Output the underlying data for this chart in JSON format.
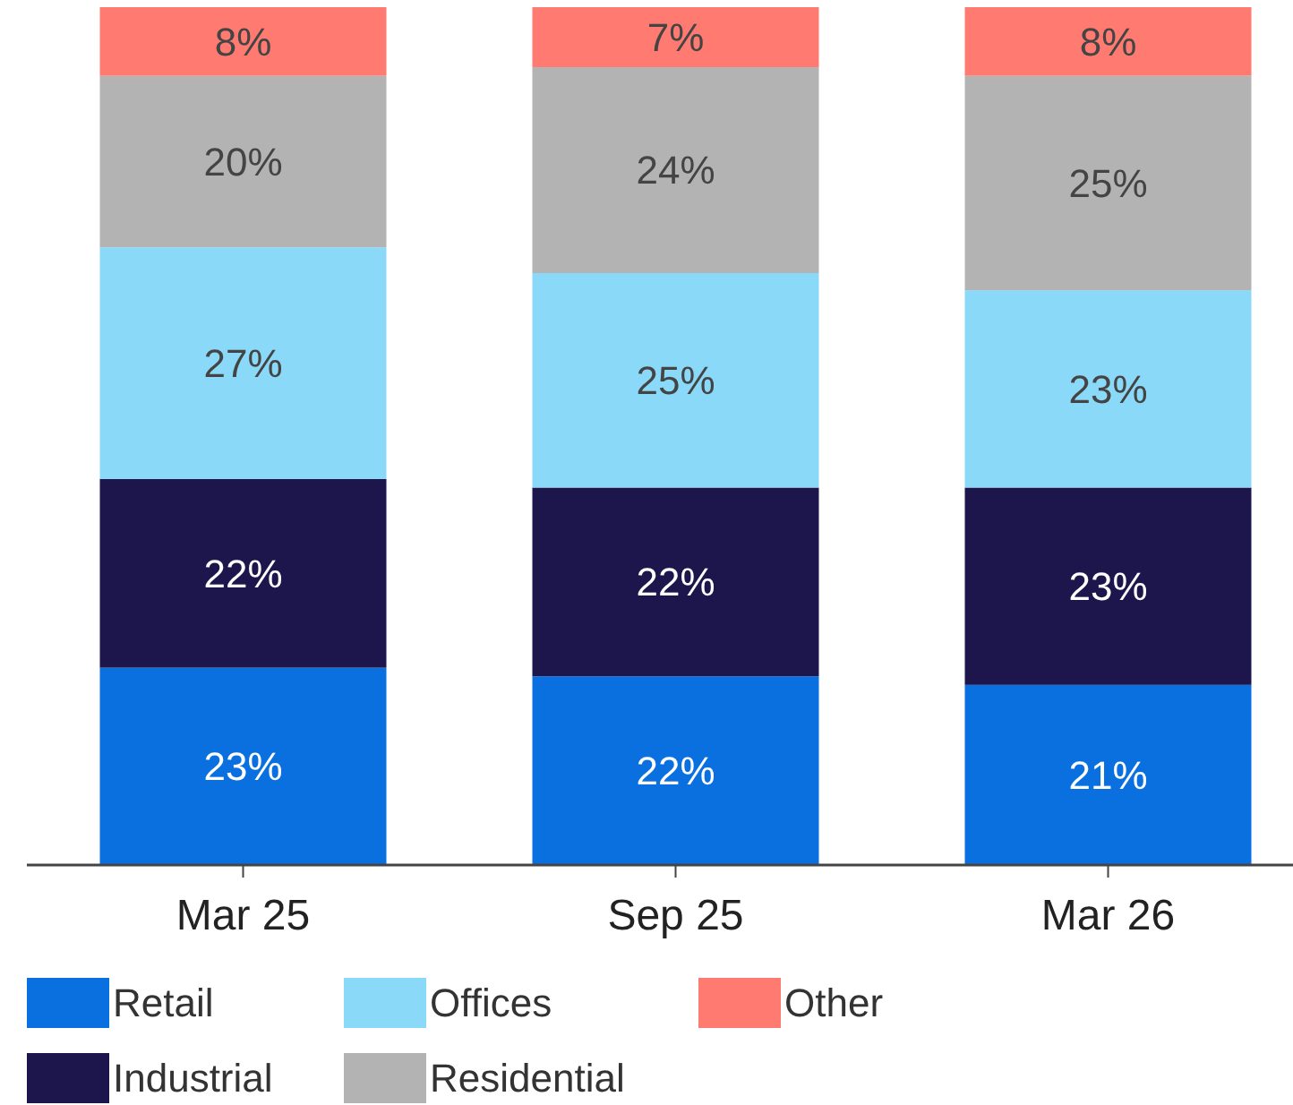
{
  "chart_data": {
    "type": "bar",
    "stacked": true,
    "legend": "bottom",
    "categories": [
      "Mar 25",
      "Sep 25",
      "Mar 26"
    ],
    "series": [
      {
        "name": "Retail",
        "color": "#0a70e0",
        "values": [
          23,
          22,
          21
        ],
        "value_labels": [
          "23%",
          "22%",
          "21%"
        ]
      },
      {
        "name": "Industrial",
        "color": "#1d164d",
        "values": [
          22,
          22,
          23
        ],
        "value_labels": [
          "22%",
          "22%",
          "23%"
        ]
      },
      {
        "name": "Offices",
        "color": "#8ad9f8",
        "values": [
          27,
          25,
          23
        ],
        "value_labels": [
          "27%",
          "25%",
          "23%"
        ]
      },
      {
        "name": "Residential",
        "color": "#b3b3b3",
        "values": [
          20,
          24,
          25
        ],
        "value_labels": [
          "20%",
          "24%",
          "25%"
        ]
      },
      {
        "name": "Other",
        "color": "#ff7a70",
        "values": [
          8,
          7,
          8
        ],
        "value_labels": [
          "8%",
          "7%",
          "8%"
        ]
      }
    ]
  }
}
